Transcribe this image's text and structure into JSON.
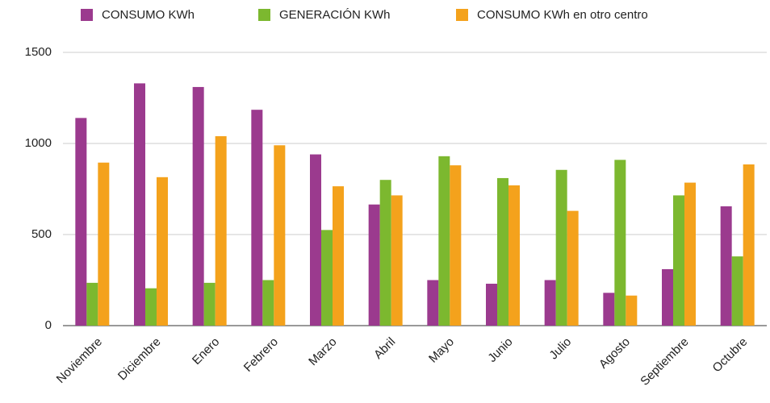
{
  "chart_data": {
    "type": "bar",
    "categories": [
      "Noviembre",
      "Diciembre",
      "Enero",
      "Febrero",
      "Marzo",
      "Abril",
      "Mayo",
      "Junio",
      "Julio",
      "Agosto",
      "Septiembre",
      "Octubre"
    ],
    "series": [
      {
        "name": "CONSUMO KWh",
        "color": "#9b3a8e",
        "values": [
          1140,
          1330,
          1310,
          1185,
          940,
          665,
          250,
          230,
          250,
          180,
          310,
          655
        ]
      },
      {
        "name": "GENERACIÓN KWh",
        "color": "#7cb82f",
        "values": [
          235,
          205,
          235,
          250,
          525,
          800,
          930,
          810,
          855,
          910,
          715,
          380
        ]
      },
      {
        "name": "CONSUMO KWh en otro centro",
        "color": "#f4a21c",
        "values": [
          895,
          815,
          1040,
          990,
          765,
          715,
          880,
          770,
          630,
          165,
          785,
          885
        ]
      }
    ],
    "ylim": [
      0,
      1500
    ],
    "yticks": [
      0,
      500,
      1000,
      1500
    ],
    "grid": true,
    "legend": "top"
  }
}
